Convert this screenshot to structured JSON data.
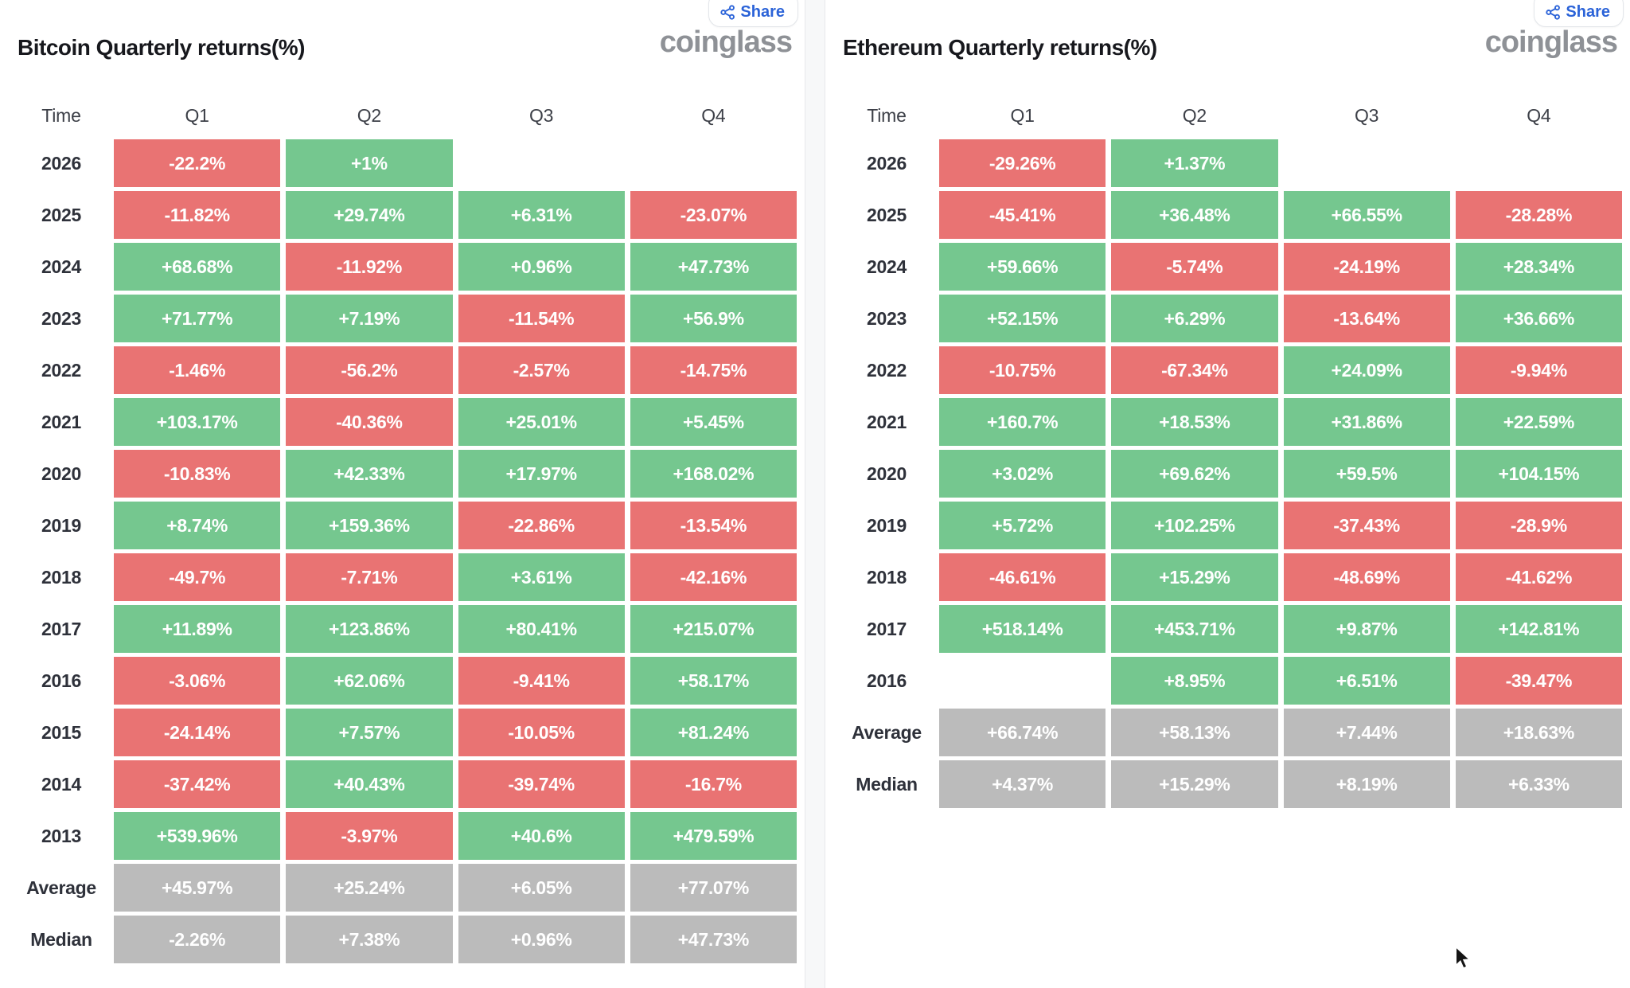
{
  "colors": {
    "positive": "#75c78f",
    "negative": "#e97373",
    "summary": "#bbbbbb",
    "accent_blue": "#2b63d8",
    "logo_gray": "#8e9196"
  },
  "panels": [
    {
      "title": "Bitcoin Quarterly returns(%)",
      "share_label": "Share",
      "logo": "coinglass",
      "columns": [
        "Time",
        "Q1",
        "Q2",
        "Q3",
        "Q4"
      ],
      "rows": [
        {
          "label": "2026",
          "type": "year",
          "cells": [
            {
              "v": "-22.2%",
              "c": "neg"
            },
            {
              "v": "+1%",
              "c": "pos"
            },
            null,
            null
          ]
        },
        {
          "label": "2025",
          "type": "year",
          "cells": [
            {
              "v": "-11.82%",
              "c": "neg"
            },
            {
              "v": "+29.74%",
              "c": "pos"
            },
            {
              "v": "+6.31%",
              "c": "pos"
            },
            {
              "v": "-23.07%",
              "c": "neg"
            }
          ]
        },
        {
          "label": "2024",
          "type": "year",
          "cells": [
            {
              "v": "+68.68%",
              "c": "pos"
            },
            {
              "v": "-11.92%",
              "c": "neg"
            },
            {
              "v": "+0.96%",
              "c": "pos"
            },
            {
              "v": "+47.73%",
              "c": "pos"
            }
          ]
        },
        {
          "label": "2023",
          "type": "year",
          "cells": [
            {
              "v": "+71.77%",
              "c": "pos"
            },
            {
              "v": "+7.19%",
              "c": "pos"
            },
            {
              "v": "-11.54%",
              "c": "neg"
            },
            {
              "v": "+56.9%",
              "c": "pos"
            }
          ]
        },
        {
          "label": "2022",
          "type": "year",
          "cells": [
            {
              "v": "-1.46%",
              "c": "neg"
            },
            {
              "v": "-56.2%",
              "c": "neg"
            },
            {
              "v": "-2.57%",
              "c": "neg"
            },
            {
              "v": "-14.75%",
              "c": "neg"
            }
          ]
        },
        {
          "label": "2021",
          "type": "year",
          "cells": [
            {
              "v": "+103.17%",
              "c": "pos"
            },
            {
              "v": "-40.36%",
              "c": "neg"
            },
            {
              "v": "+25.01%",
              "c": "pos"
            },
            {
              "v": "+5.45%",
              "c": "pos"
            }
          ]
        },
        {
          "label": "2020",
          "type": "year",
          "cells": [
            {
              "v": "-10.83%",
              "c": "neg"
            },
            {
              "v": "+42.33%",
              "c": "pos"
            },
            {
              "v": "+17.97%",
              "c": "pos"
            },
            {
              "v": "+168.02%",
              "c": "pos"
            }
          ]
        },
        {
          "label": "2019",
          "type": "year",
          "cells": [
            {
              "v": "+8.74%",
              "c": "pos"
            },
            {
              "v": "+159.36%",
              "c": "pos"
            },
            {
              "v": "-22.86%",
              "c": "neg"
            },
            {
              "v": "-13.54%",
              "c": "neg"
            }
          ]
        },
        {
          "label": "2018",
          "type": "year",
          "cells": [
            {
              "v": "-49.7%",
              "c": "neg"
            },
            {
              "v": "-7.71%",
              "c": "neg"
            },
            {
              "v": "+3.61%",
              "c": "pos"
            },
            {
              "v": "-42.16%",
              "c": "neg"
            }
          ]
        },
        {
          "label": "2017",
          "type": "year",
          "cells": [
            {
              "v": "+11.89%",
              "c": "pos"
            },
            {
              "v": "+123.86%",
              "c": "pos"
            },
            {
              "v": "+80.41%",
              "c": "pos"
            },
            {
              "v": "+215.07%",
              "c": "pos"
            }
          ]
        },
        {
          "label": "2016",
          "type": "year",
          "cells": [
            {
              "v": "-3.06%",
              "c": "neg"
            },
            {
              "v": "+62.06%",
              "c": "pos"
            },
            {
              "v": "-9.41%",
              "c": "neg"
            },
            {
              "v": "+58.17%",
              "c": "pos"
            }
          ]
        },
        {
          "label": "2015",
          "type": "year",
          "cells": [
            {
              "v": "-24.14%",
              "c": "neg"
            },
            {
              "v": "+7.57%",
              "c": "pos"
            },
            {
              "v": "-10.05%",
              "c": "neg"
            },
            {
              "v": "+81.24%",
              "c": "pos"
            }
          ]
        },
        {
          "label": "2014",
          "type": "year",
          "cells": [
            {
              "v": "-37.42%",
              "c": "neg"
            },
            {
              "v": "+40.43%",
              "c": "pos"
            },
            {
              "v": "-39.74%",
              "c": "neg"
            },
            {
              "v": "-16.7%",
              "c": "neg"
            }
          ]
        },
        {
          "label": "2013",
          "type": "year",
          "cells": [
            {
              "v": "+539.96%",
              "c": "pos"
            },
            {
              "v": "-3.97%",
              "c": "neg"
            },
            {
              "v": "+40.6%",
              "c": "pos"
            },
            {
              "v": "+479.59%",
              "c": "pos"
            }
          ]
        },
        {
          "label": "Average",
          "type": "summary",
          "cells": [
            {
              "v": "+45.97%",
              "c": "sum"
            },
            {
              "v": "+25.24%",
              "c": "sum"
            },
            {
              "v": "+6.05%",
              "c": "sum"
            },
            {
              "v": "+77.07%",
              "c": "sum"
            }
          ]
        },
        {
          "label": "Median",
          "type": "summary",
          "cells": [
            {
              "v": "-2.26%",
              "c": "sum"
            },
            {
              "v": "+7.38%",
              "c": "sum"
            },
            {
              "v": "+0.96%",
              "c": "sum"
            },
            {
              "v": "+47.73%",
              "c": "sum"
            }
          ]
        }
      ]
    },
    {
      "title": "Ethereum Quarterly returns(%)",
      "share_label": "Share",
      "logo": "coinglass",
      "columns": [
        "Time",
        "Q1",
        "Q2",
        "Q3",
        "Q4"
      ],
      "rows": [
        {
          "label": "2026",
          "type": "year",
          "cells": [
            {
              "v": "-29.26%",
              "c": "neg"
            },
            {
              "v": "+1.37%",
              "c": "pos"
            },
            null,
            null
          ]
        },
        {
          "label": "2025",
          "type": "year",
          "cells": [
            {
              "v": "-45.41%",
              "c": "neg"
            },
            {
              "v": "+36.48%",
              "c": "pos"
            },
            {
              "v": "+66.55%",
              "c": "pos"
            },
            {
              "v": "-28.28%",
              "c": "neg"
            }
          ]
        },
        {
          "label": "2024",
          "type": "year",
          "cells": [
            {
              "v": "+59.66%",
              "c": "pos"
            },
            {
              "v": "-5.74%",
              "c": "neg"
            },
            {
              "v": "-24.19%",
              "c": "neg"
            },
            {
              "v": "+28.34%",
              "c": "pos"
            }
          ]
        },
        {
          "label": "2023",
          "type": "year",
          "cells": [
            {
              "v": "+52.15%",
              "c": "pos"
            },
            {
              "v": "+6.29%",
              "c": "pos"
            },
            {
              "v": "-13.64%",
              "c": "neg"
            },
            {
              "v": "+36.66%",
              "c": "pos"
            }
          ]
        },
        {
          "label": "2022",
          "type": "year",
          "cells": [
            {
              "v": "-10.75%",
              "c": "neg"
            },
            {
              "v": "-67.34%",
              "c": "neg"
            },
            {
              "v": "+24.09%",
              "c": "pos"
            },
            {
              "v": "-9.94%",
              "c": "neg"
            }
          ]
        },
        {
          "label": "2021",
          "type": "year",
          "cells": [
            {
              "v": "+160.7%",
              "c": "pos"
            },
            {
              "v": "+18.53%",
              "c": "pos"
            },
            {
              "v": "+31.86%",
              "c": "pos"
            },
            {
              "v": "+22.59%",
              "c": "pos"
            }
          ]
        },
        {
          "label": "2020",
          "type": "year",
          "cells": [
            {
              "v": "+3.02%",
              "c": "pos"
            },
            {
              "v": "+69.62%",
              "c": "pos"
            },
            {
              "v": "+59.5%",
              "c": "pos"
            },
            {
              "v": "+104.15%",
              "c": "pos"
            }
          ]
        },
        {
          "label": "2019",
          "type": "year",
          "cells": [
            {
              "v": "+5.72%",
              "c": "pos"
            },
            {
              "v": "+102.25%",
              "c": "pos"
            },
            {
              "v": "-37.43%",
              "c": "neg"
            },
            {
              "v": "-28.9%",
              "c": "neg"
            }
          ]
        },
        {
          "label": "2018",
          "type": "year",
          "cells": [
            {
              "v": "-46.61%",
              "c": "neg"
            },
            {
              "v": "+15.29%",
              "c": "pos"
            },
            {
              "v": "-48.69%",
              "c": "neg"
            },
            {
              "v": "-41.62%",
              "c": "neg"
            }
          ]
        },
        {
          "label": "2017",
          "type": "year",
          "cells": [
            {
              "v": "+518.14%",
              "c": "pos"
            },
            {
              "v": "+453.71%",
              "c": "pos"
            },
            {
              "v": "+9.87%",
              "c": "pos"
            },
            {
              "v": "+142.81%",
              "c": "pos"
            }
          ]
        },
        {
          "label": "2016",
          "type": "year",
          "cells": [
            null,
            {
              "v": "+8.95%",
              "c": "pos"
            },
            {
              "v": "+6.51%",
              "c": "pos"
            },
            {
              "v": "-39.47%",
              "c": "neg"
            }
          ]
        },
        {
          "label": "Average",
          "type": "summary",
          "cells": [
            {
              "v": "+66.74%",
              "c": "sum"
            },
            {
              "v": "+58.13%",
              "c": "sum"
            },
            {
              "v": "+7.44%",
              "c": "sum"
            },
            {
              "v": "+18.63%",
              "c": "sum"
            }
          ]
        },
        {
          "label": "Median",
          "type": "summary",
          "cells": [
            {
              "v": "+4.37%",
              "c": "sum"
            },
            {
              "v": "+15.29%",
              "c": "sum"
            },
            {
              "v": "+8.19%",
              "c": "sum"
            },
            {
              "v": "+6.33%",
              "c": "sum"
            }
          ]
        }
      ]
    }
  ],
  "chart_data": [
    {
      "type": "heatmap",
      "title": "Bitcoin Quarterly returns(%)",
      "categories": [
        "Q1",
        "Q2",
        "Q3",
        "Q4"
      ],
      "rows": [
        "2026",
        "2025",
        "2024",
        "2023",
        "2022",
        "2021",
        "2020",
        "2019",
        "2018",
        "2017",
        "2016",
        "2015",
        "2014",
        "2013",
        "Average",
        "Median"
      ],
      "values": [
        [
          -22.2,
          1,
          null,
          null
        ],
        [
          -11.82,
          29.74,
          6.31,
          -23.07
        ],
        [
          68.68,
          -11.92,
          0.96,
          47.73
        ],
        [
          71.77,
          7.19,
          -11.54,
          56.9
        ],
        [
          -1.46,
          -56.2,
          -2.57,
          -14.75
        ],
        [
          103.17,
          -40.36,
          25.01,
          5.45
        ],
        [
          -10.83,
          42.33,
          17.97,
          168.02
        ],
        [
          8.74,
          159.36,
          -22.86,
          -13.54
        ],
        [
          -49.7,
          -7.71,
          3.61,
          -42.16
        ],
        [
          11.89,
          123.86,
          80.41,
          215.07
        ],
        [
          -3.06,
          62.06,
          -9.41,
          58.17
        ],
        [
          -24.14,
          7.57,
          -10.05,
          81.24
        ],
        [
          -37.42,
          40.43,
          -39.74,
          -16.7
        ],
        [
          539.96,
          -3.97,
          40.6,
          479.59
        ],
        [
          45.97,
          25.24,
          6.05,
          77.07
        ],
        [
          -2.26,
          7.38,
          0.96,
          47.73
        ]
      ],
      "color_rule": "green = positive, red = negative, gray = Average/Median rows",
      "legend_position": "none",
      "grid": false
    },
    {
      "type": "heatmap",
      "title": "Ethereum Quarterly returns(%)",
      "categories": [
        "Q1",
        "Q2",
        "Q3",
        "Q4"
      ],
      "rows": [
        "2026",
        "2025",
        "2024",
        "2023",
        "2022",
        "2021",
        "2020",
        "2019",
        "2018",
        "2017",
        "2016",
        "Average",
        "Median"
      ],
      "values": [
        [
          -29.26,
          1.37,
          null,
          null
        ],
        [
          -45.41,
          36.48,
          66.55,
          -28.28
        ],
        [
          59.66,
          -5.74,
          -24.19,
          28.34
        ],
        [
          52.15,
          6.29,
          -13.64,
          36.66
        ],
        [
          -10.75,
          -67.34,
          24.09,
          -9.94
        ],
        [
          160.7,
          18.53,
          31.86,
          22.59
        ],
        [
          3.02,
          69.62,
          59.5,
          104.15
        ],
        [
          5.72,
          102.25,
          -37.43,
          -28.9
        ],
        [
          -46.61,
          15.29,
          -48.69,
          -41.62
        ],
        [
          518.14,
          453.71,
          9.87,
          142.81
        ],
        [
          null,
          8.95,
          6.51,
          -39.47
        ],
        [
          66.74,
          58.13,
          7.44,
          18.63
        ],
        [
          4.37,
          15.29,
          8.19,
          6.33
        ]
      ],
      "color_rule": "green = positive, red = negative, gray = Average/Median rows",
      "legend_position": "none",
      "grid": false
    }
  ]
}
